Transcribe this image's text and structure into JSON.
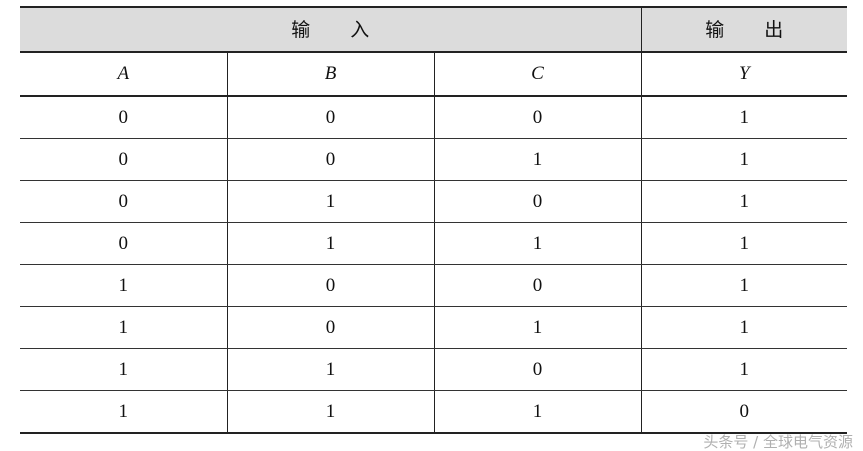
{
  "header": {
    "inputs": [
      "输",
      "入"
    ],
    "outputs": [
      "输",
      "出"
    ]
  },
  "columns": [
    "A",
    "B",
    "C",
    "Y"
  ],
  "rows": [
    [
      "0",
      "0",
      "0",
      "1"
    ],
    [
      "0",
      "0",
      "1",
      "1"
    ],
    [
      "0",
      "1",
      "0",
      "1"
    ],
    [
      "0",
      "1",
      "1",
      "1"
    ],
    [
      "1",
      "0",
      "0",
      "1"
    ],
    [
      "1",
      "0",
      "1",
      "1"
    ],
    [
      "1",
      "1",
      "0",
      "1"
    ],
    [
      "1",
      "1",
      "1",
      "0"
    ]
  ],
  "watermark": "头条号 / 全球电气资源"
}
